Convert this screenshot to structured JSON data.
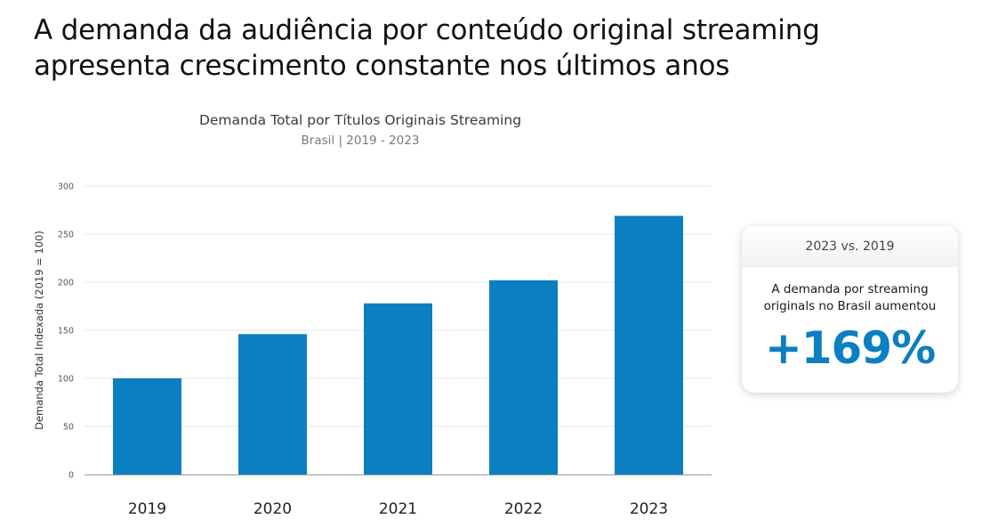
{
  "headline": {
    "line1": "A demanda da audiência por conteúdo original streaming",
    "line2": "apresenta crescimento constante nos últimos anos"
  },
  "card": {
    "header": "2023 vs. 2019",
    "desc_line1": "A demanda por streaming",
    "desc_line2": "originals no Brasil aumentou",
    "value": "+169%"
  },
  "colors": {
    "bar": "#0b7fc1",
    "accent": "#0b7fc1",
    "grid": "#e6e6e6",
    "axis": "#999999"
  },
  "chart_data": {
    "type": "bar",
    "title": "Demanda Total por Títulos Originais Streaming",
    "subtitle": "Brasil | 2019 - 2023",
    "xlabel": "",
    "ylabel": "Demanda Total Indexada (2019 = 100)",
    "categories": [
      "2019",
      "2020",
      "2021",
      "2022",
      "2023"
    ],
    "values": [
      100,
      146,
      178,
      202,
      269
    ],
    "ylim": [
      0,
      300
    ],
    "yticks": [
      0,
      50,
      100,
      150,
      200,
      250,
      300
    ],
    "grid": true,
    "legend": "none"
  }
}
